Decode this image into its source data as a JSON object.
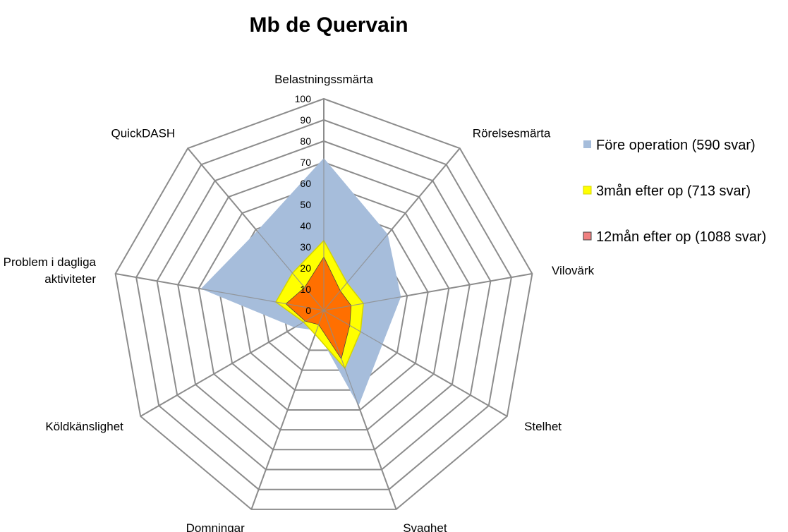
{
  "chart_data": {
    "type": "radar",
    "title": "Mb de Quervain",
    "categories": [
      "Belastningssmärta",
      "Rörelsesmärta",
      "Vilovärk",
      "Stelhet",
      "Svaghet",
      "Domningar",
      "Köldkänslighet",
      "Problem i dagliga aktiviteter",
      "QuickDASH"
    ],
    "category_lines": [
      [
        "Belastningssmärta"
      ],
      [
        "Rörelsesmärta"
      ],
      [
        "Vilovärk"
      ],
      [
        "Stelhet"
      ],
      [
        "Svaghet"
      ],
      [
        "Domningar"
      ],
      [
        "Köldkänslighet"
      ],
      [
        "Problem i dagliga",
        "aktiviteter"
      ],
      [
        "QuickDASH"
      ]
    ],
    "rlim": [
      0,
      100
    ],
    "ticks": [
      0,
      10,
      20,
      30,
      40,
      50,
      60,
      70,
      80,
      90,
      100
    ],
    "grid": true,
    "legend_position": "right",
    "series": [
      {
        "name": "Före operation (590 svar)",
        "color": "#a6bddb",
        "stroke": "none",
        "values": [
          72,
          47,
          37,
          32,
          48,
          10,
          16,
          59,
          49
        ]
      },
      {
        "name": "3mån efter op (713 svar)",
        "color": "#ffff00",
        "stroke": "#d4d400",
        "values": [
          33,
          17,
          19,
          20,
          29,
          12,
          11,
          23,
          23
        ]
      },
      {
        "name": "12mån efter op (1088 svar)",
        "color": "#f08080",
        "stroke": "#404040",
        "values": [
          25,
          12,
          13,
          14,
          24,
          7,
          10,
          18,
          14
        ]
      }
    ],
    "overlay_color": "#ff6f00"
  }
}
